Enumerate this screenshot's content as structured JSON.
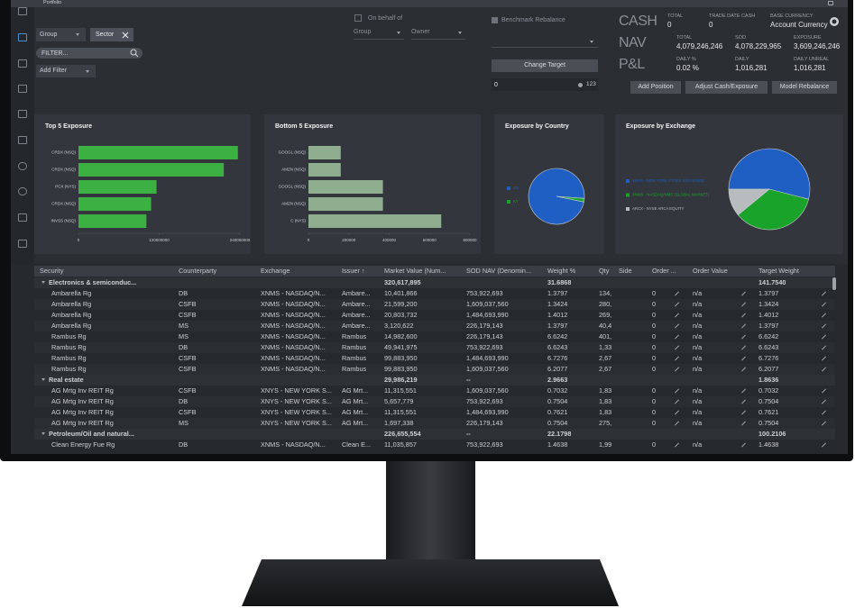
{
  "header": {
    "app_title": "Portfolio",
    "group_select": "Group",
    "sector_chip": "Sector",
    "filter_placeholder": "FILTER...",
    "add_filter": "Add Filter",
    "on_behalf_of": "On behalf of",
    "group_label": "Group",
    "owner_label": "Owner",
    "benchmark_rebalance": "Benchmark Rebalance",
    "change_target": "Change Target",
    "target_input": "0",
    "target_count": "123"
  },
  "summary": {
    "sections": [
      {
        "label": "CASH",
        "fields": [
          {
            "label": "TOTAL",
            "value": "0"
          },
          {
            "label": "TRADE DATE CASH",
            "value": "0"
          },
          {
            "label": "BASE CURRENCY",
            "value": "Account Currency"
          }
        ]
      },
      {
        "label": "NAV",
        "fields": [
          {
            "label": "TOTAL",
            "value": "4,079,246,246"
          },
          {
            "label": "SOD",
            "value": "4,078,229,965"
          },
          {
            "label": "EXPOSURE",
            "value": "3,609,246,246"
          }
        ]
      },
      {
        "label": "P&L",
        "fields": [
          {
            "label": "DAILY %",
            "value": "0.02 %"
          },
          {
            "label": "DAILY",
            "value": "1,016,281"
          },
          {
            "label": "DAILY UNREAL",
            "value": "1,016,281"
          }
        ]
      }
    ],
    "buttons": [
      "Add Position",
      "Adjust Cash/Exposure",
      "Model Rebalance"
    ]
  },
  "chart_data": [
    {
      "type": "bar",
      "orientation": "horizontal",
      "title": "Top 5 Exposure",
      "categories": [
        "CRDX (NSQ)",
        "CRDX (NSQ)",
        "PCX (NYS)",
        "CRDX (NSQ)",
        "INVSS (NSQ)"
      ],
      "values": [
        237000000,
        216000000,
        116000000,
        108000000,
        101000000
      ],
      "color": "#3cb043",
      "xlim": [
        0,
        240000000
      ],
      "xticks": [
        0,
        120000000,
        240000000
      ]
    },
    {
      "type": "bar",
      "orientation": "horizontal",
      "title": "Bottom 5 Exposure",
      "categories": [
        "GOOGL (NSQ)",
        "AMZN (NSQ)",
        "GOOGL (NSQ)",
        "AMZN (NSQ)",
        "C (NYS)"
      ],
      "values": [
        160000,
        160000,
        369000,
        369000,
        658000
      ],
      "color": "#8fad8f",
      "xlim": [
        0,
        800000
      ],
      "xticks": [
        0,
        200000,
        400000,
        600000,
        800000
      ]
    },
    {
      "type": "pie",
      "title": "Exposure by Country",
      "categories": [
        "US",
        "KY"
      ],
      "values": [
        98,
        2
      ],
      "colors": [
        "#1f5fc4",
        "#1aa32a"
      ]
    },
    {
      "type": "pie",
      "title": "Exposure by Exchange",
      "categories": [
        "XNYS - NEW YORK STOCK EXCHANGE",
        "XNMS - NASDAQ/NMS (GLOBAL MARKET)",
        "ARCX - NYSE ARCA EQUITY"
      ],
      "values": [
        54,
        35,
        11
      ],
      "colors": [
        "#1f5fc4",
        "#1aa32a",
        "#b8bcbf"
      ]
    }
  ],
  "table": {
    "columns": [
      "Security",
      "Counterparty",
      "Exchange",
      "Issuer ↑",
      "Market Value (Num...",
      "SOD NAV (Denomin...",
      "Weight %",
      "Qty",
      "Side",
      "Order ...",
      "Order Value",
      "Target Weight"
    ],
    "groups": [
      {
        "name": "Electronics & semiconduc...",
        "market_value": "320,617,895",
        "weight": "31.6868",
        "target_weight": "141.7540",
        "rows": [
          [
            "Ambarella Rg",
            "DB",
            "XNMS - NASDAQ/N...",
            "Ambare...",
            "10,401,866",
            "753,922,693",
            "1.3797",
            "134,",
            null,
            "0",
            "n/a",
            "1.3797"
          ],
          [
            "Ambarella Rg",
            "CSFB",
            "XNMS - NASDAQ/N...",
            "Ambare...",
            "21,599,200",
            "1,609,037,560",
            "1.3424",
            "280,",
            null,
            "0",
            "n/a",
            "1.3424"
          ],
          [
            "Ambarella Rg",
            "CSFB",
            "XNMS - NASDAQ/N...",
            "Ambare...",
            "20,803,732",
            "1,484,693,990",
            "1.4012",
            "269,",
            null,
            "0",
            "n/a",
            "1.4012"
          ],
          [
            "Ambarella Rg",
            "MS",
            "XNMS - NASDAQ/N...",
            "Ambare...",
            "3,120,622",
            "226,179,143",
            "1.3797",
            "40,4",
            null,
            "0",
            "n/a",
            "1.3797"
          ],
          [
            "Rambus Rg",
            "MS",
            "XNMS - NASDAQ/N...",
            "Rambus",
            "14,982,600",
            "226,179,143",
            "6.6242",
            "401,",
            null,
            "0",
            "n/a",
            "6.6242"
          ],
          [
            "Rambus Rg",
            "DB",
            "XNMS - NASDAQ/N...",
            "Rambus",
            "49,941,975",
            "753,922,693",
            "6.6243",
            "1,33",
            null,
            "0",
            "n/a",
            "6.6243"
          ],
          [
            "Rambus Rg",
            "CSFB",
            "XNMS - NASDAQ/N...",
            "Rambus",
            "99,883,950",
            "1,484,693,990",
            "6.7276",
            "2,67",
            null,
            "0",
            "n/a",
            "6.7276"
          ],
          [
            "Rambus Rg",
            "CSFB",
            "XNMS - NASDAQ/N...",
            "Rambus",
            "99,883,950",
            "1,609,037,560",
            "6.2077",
            "2,67",
            null,
            "0",
            "n/a",
            "6.2077"
          ]
        ]
      },
      {
        "name": "Real estate",
        "market_value": "29,986,219",
        "sod_nav": "--",
        "weight": "2.9663",
        "target_weight": "1.8636",
        "rows": [
          [
            "AG Mrtg Inv REIT Rg",
            "CSFB",
            "XNYS - NEW YORK S...",
            "AG Mrt...",
            "11,315,551",
            "1,609,037,560",
            "0.7032",
            "1,83",
            null,
            "0",
            "n/a",
            "0.7032"
          ],
          [
            "AG Mrtg Inv REIT Rg",
            "DB",
            "XNYS - NEW YORK S...",
            "AG Mrt...",
            "5,657,779",
            "753,922,693",
            "0.7504",
            "1,83",
            null,
            "0",
            "n/a",
            "0.7504"
          ],
          [
            "AG Mrtg Inv REIT Rg",
            "CSFB",
            "XNYS - NEW YORK S...",
            "AG Mrt...",
            "11,315,551",
            "1,484,693,990",
            "0.7621",
            "1,83",
            null,
            "0",
            "n/a",
            "0.7621"
          ],
          [
            "AG Mrtg Inv REIT Rg",
            "MS",
            "XNYS - NEW YORK S...",
            "AG Mrt...",
            "1,697,338",
            "226,179,143",
            "0.7504",
            "275,",
            null,
            "0",
            "n/a",
            "0.7504"
          ]
        ]
      },
      {
        "name": "Petroleum/Oil and natural...",
        "market_value": "226,655,554",
        "sod_nav": "--",
        "weight": "22.1798",
        "target_weight": "100.2106",
        "rows": [
          [
            "Clean Energy Fue Rg",
            "DB",
            "XNMS - NASDAQ/N...",
            "Clean E...",
            "11,035,857",
            "753,922,693",
            "1.4638",
            "1,99",
            null,
            "0",
            "n/a",
            "1.4638"
          ]
        ]
      }
    ]
  }
}
